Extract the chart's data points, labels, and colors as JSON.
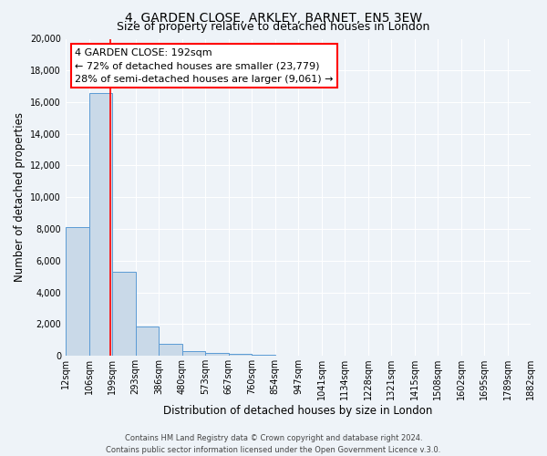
{
  "title": "4, GARDEN CLOSE, ARKLEY, BARNET, EN5 3EW",
  "subtitle": "Size of property relative to detached houses in London",
  "xlabel": "Distribution of detached houses by size in London",
  "ylabel": "Number of detached properties",
  "bin_labels": [
    "12sqm",
    "106sqm",
    "199sqm",
    "293sqm",
    "386sqm",
    "480sqm",
    "573sqm",
    "667sqm",
    "760sqm",
    "854sqm",
    "947sqm",
    "1041sqm",
    "1134sqm",
    "1228sqm",
    "1321sqm",
    "1415sqm",
    "1508sqm",
    "1602sqm",
    "1695sqm",
    "1789sqm",
    "1882sqm"
  ],
  "bin_edges": [
    12,
    106,
    199,
    293,
    386,
    480,
    573,
    667,
    760,
    854,
    947,
    1041,
    1134,
    1228,
    1321,
    1415,
    1508,
    1602,
    1695,
    1789,
    1882
  ],
  "bar_values": [
    8100,
    16600,
    5300,
    1850,
    750,
    280,
    160,
    100,
    70,
    0,
    0,
    0,
    0,
    0,
    0,
    0,
    0,
    0,
    0,
    0
  ],
  "bar_color": "#c9d9e8",
  "bar_edge_color": "#5b9bd5",
  "red_line_x": 192,
  "property_label": "4 GARDEN CLOSE: 192sqm",
  "annotation_line1": "← 72% of detached houses are smaller (23,779)",
  "annotation_line2": "28% of semi-detached houses are larger (9,061) →",
  "ylim": [
    0,
    20000
  ],
  "yticks": [
    0,
    2000,
    4000,
    6000,
    8000,
    10000,
    12000,
    14000,
    16000,
    18000,
    20000
  ],
  "footer1": "Contains HM Land Registry data © Crown copyright and database right 2024.",
  "footer2": "Contains public sector information licensed under the Open Government Licence v.3.0.",
  "bg_color": "#eef3f8",
  "plot_bg_color": "#eef3f8",
  "grid_color": "#ffffff",
  "title_fontsize": 10,
  "subtitle_fontsize": 9,
  "axis_label_fontsize": 8.5,
  "tick_fontsize": 7,
  "annotation_fontsize": 8,
  "footer_fontsize": 6
}
